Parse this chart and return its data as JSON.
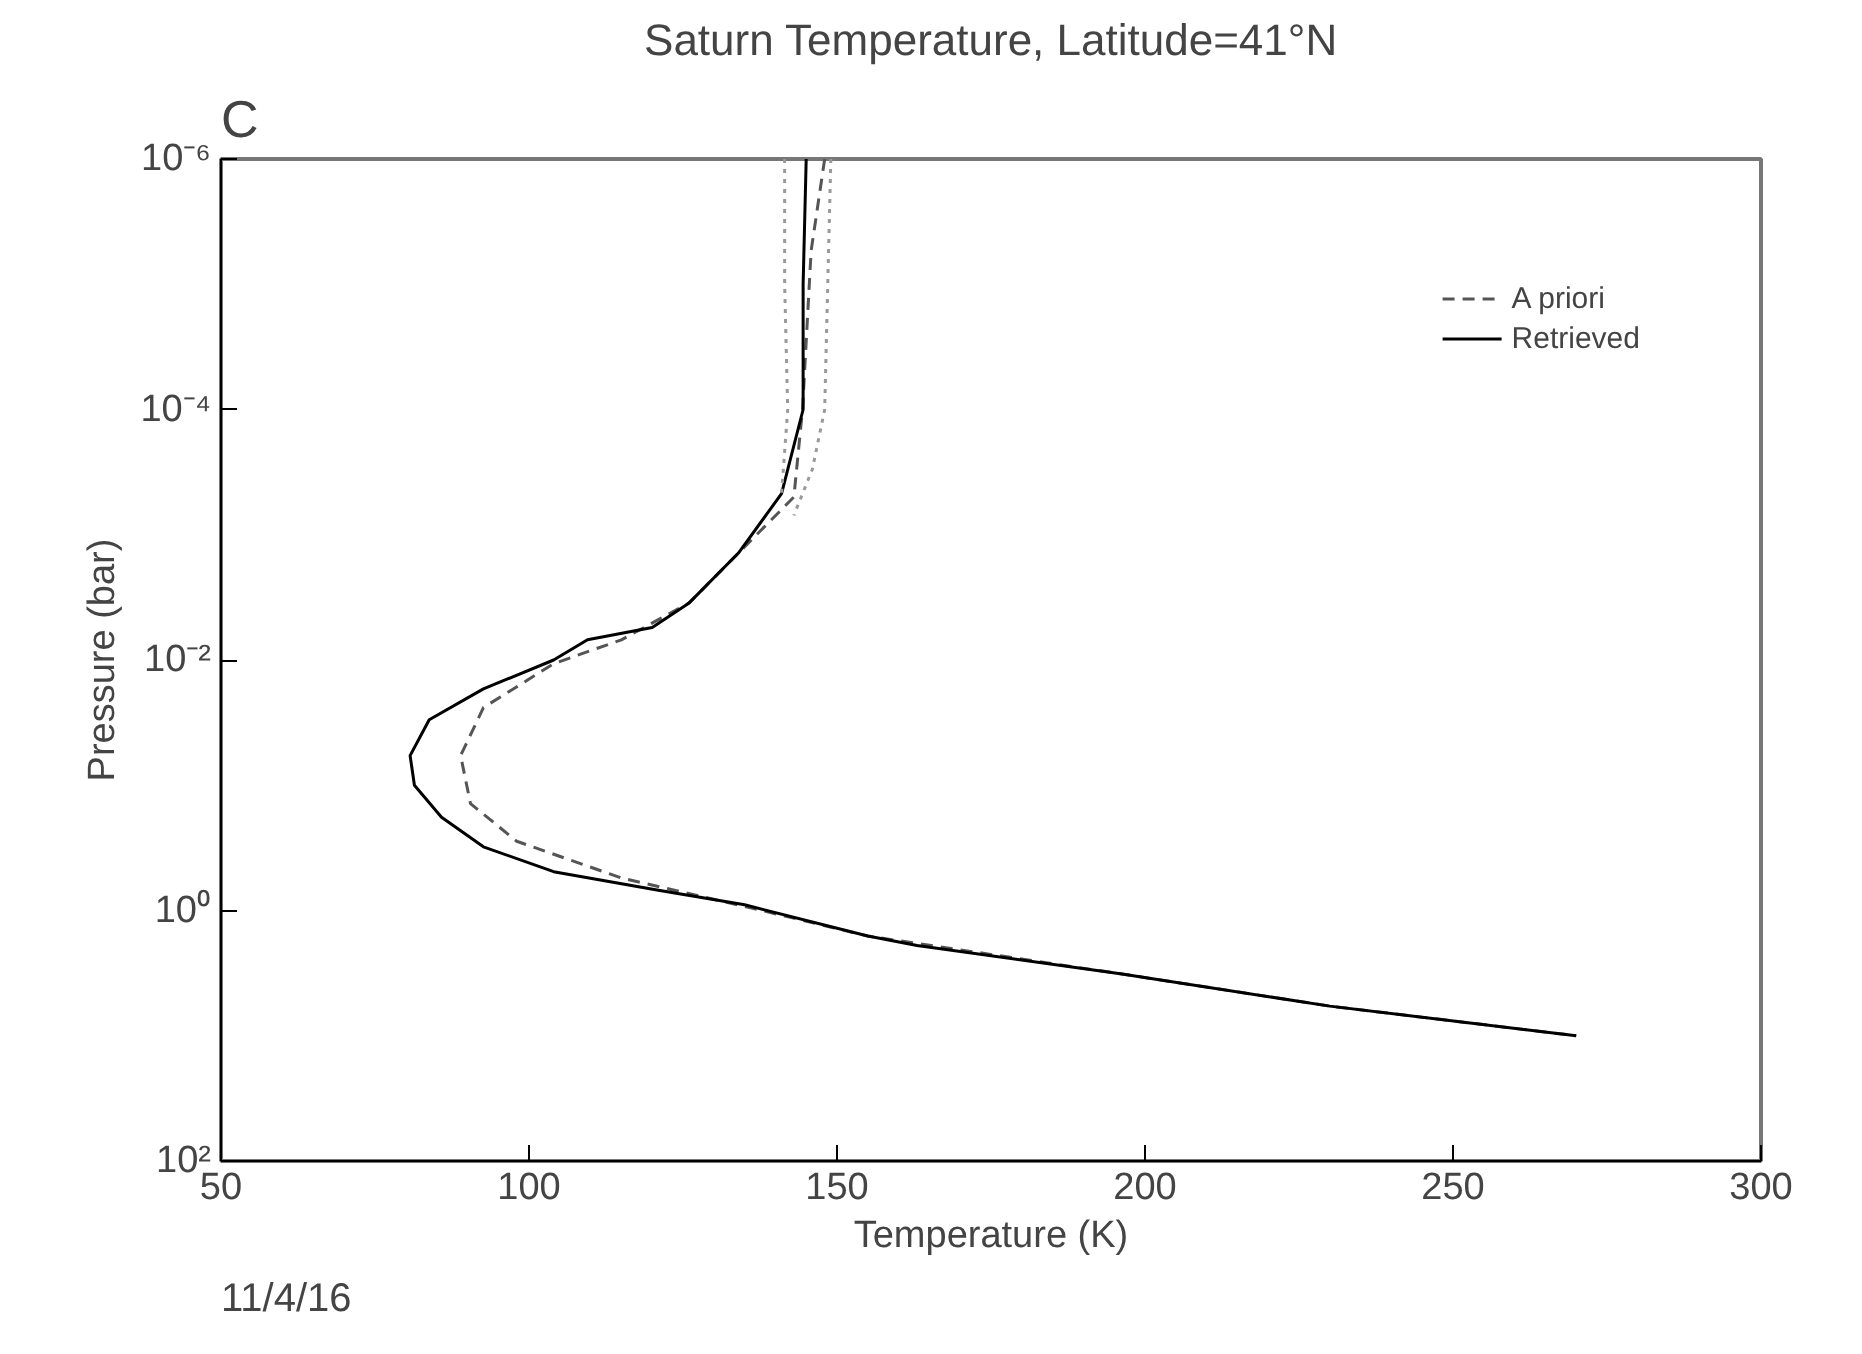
{
  "chart_data": {
    "type": "line",
    "title": "Saturn Temperature, Latitude=41°N",
    "xlabel": "Temperature (K)",
    "ylabel": "Pressure (bar)",
    "annotations": [
      "C",
      "11/4/16"
    ],
    "xlim": [
      50,
      300
    ],
    "xticks": [
      50,
      100,
      150,
      200,
      250,
      300
    ],
    "ylim": [
      100,
      1e-06
    ],
    "yticks": [
      {
        "value": 1e-06,
        "label": "10⁻⁶"
      },
      {
        "value": 0.0001,
        "label": "10⁻⁴"
      },
      {
        "value": 0.01,
        "label": "10⁻²"
      },
      {
        "value": 1,
        "label": "10⁰"
      },
      {
        "value": 100,
        "label": "10²"
      }
    ],
    "log": "y",
    "grid": false,
    "legend": "top right",
    "marker": "none",
    "series": [
      {
        "name": "A priori",
        "color": "#555555",
        "line_style": "dashed",
        "x": [
          148,
          145.8,
          144.4,
          143,
          134,
          126,
          115,
          104,
          92.6,
          88.9,
          90.5,
          98,
          115,
          137.8,
          155,
          196,
          230,
          270
        ],
        "values": [
          1e-06,
          5.4e-06,
          0.0001,
          0.0005,
          0.0014,
          0.0035,
          0.0069,
          0.0107,
          0.024,
          0.058,
          0.14,
          0.28,
          0.55,
          1.0,
          1.6,
          3.2,
          5.8,
          10
        ]
      },
      {
        "name": "Retrieved",
        "color": "#000000",
        "line_style": "solid",
        "x": [
          145,
          144.5,
          144.5,
          141,
          134,
          126,
          120,
          109.5,
          104,
          92.6,
          83.8,
          80.7,
          81.4,
          85.8,
          92.6,
          104,
          121,
          135,
          155,
          163,
          196,
          230,
          270
        ],
        "values": [
          1e-06,
          1e-05,
          0.0001,
          0.00047,
          0.0014,
          0.0035,
          0.0055,
          0.0069,
          0.01,
          0.017,
          0.03,
          0.058,
          0.1,
          0.18,
          0.31,
          0.49,
          0.69,
          0.9,
          1.6,
          1.9,
          3.2,
          5.8,
          10
        ]
      },
      {
        "color": "#999999",
        "line_style": "dotted",
        "x": [
          141.5,
          141.5,
          142,
          141
        ],
        "values": [
          1e-06,
          1e-05,
          0.0001,
          0.00047
        ]
      },
      {
        "color": "#999999",
        "line_style": "dotted",
        "x": [
          149,
          148.5,
          148,
          146,
          143
        ],
        "values": [
          1e-06,
          1e-05,
          0.0001,
          0.0003,
          0.0007
        ]
      }
    ]
  }
}
